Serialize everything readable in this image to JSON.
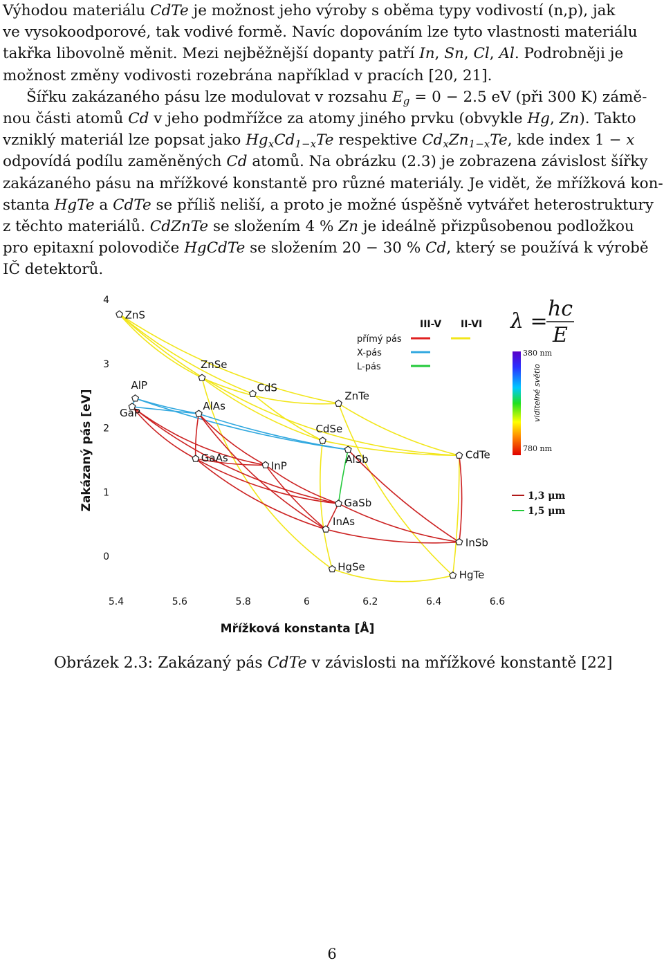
{
  "body_lines": [
    [
      "Výhodou materiálu ",
      {
        "m": "CdTe"
      },
      " je možnost jeho výroby s oběma typy vodivostí (n,p), jak"
    ],
    [
      "ve vysokoodporové, tak vodivé formě. Navíc dopováním lze tyto vlastnosti materiálu"
    ],
    [
      "takřka libovolně měnit. Mezi nejběžnější dopanty patří ",
      {
        "m": "In"
      },
      ", ",
      {
        "m": "Sn"
      },
      ", ",
      {
        "m": "Cl"
      },
      ", ",
      {
        "m": "Al"
      },
      ". Podrobněji je"
    ],
    [
      "možnost změny vodivosti rozebrána například v pracích [20, 21]."
    ],
    [
      "Šířku zakázaného pásu lze modulovat v rozsahu ",
      {
        "m": "E"
      },
      {
        "sub": "g"
      },
      " = 0 − 2.5 eV (při 300 K) zámě-"
    ],
    [
      "nou části atomů ",
      {
        "m": "Cd"
      },
      " v jeho podmřížce za atomy jiného prvku (obvykle ",
      {
        "m": "Hg"
      },
      ", ",
      {
        "m": "Zn"
      },
      "). Takto"
    ],
    [
      "vzniklý materiál lze popsat jako ",
      {
        "m": "Hg"
      },
      {
        "sub": "x"
      },
      {
        "m": "Cd"
      },
      {
        "sub": "1−x"
      },
      {
        "m": "Te"
      },
      " respektive ",
      {
        "m": "Cd"
      },
      {
        "sub": "x"
      },
      {
        "m": "Zn"
      },
      {
        "sub": "1−x"
      },
      {
        "m": "Te"
      },
      ", kde index 1 − ",
      {
        "m": "x"
      }
    ],
    [
      "odpovídá podílu zaměněných ",
      {
        "m": "Cd"
      },
      " atomů. Na obrázku (2.3) je zobrazena závislost šířky"
    ],
    [
      "zakázaného pásu na mřížkové konstantě pro různé materiály. Je vidět, že mřížková kon-"
    ],
    [
      "stanta ",
      {
        "m": "HgTe"
      },
      " a ",
      {
        "m": "CdTe"
      },
      " se příliš neliší, a proto je možné úspěšně vytvářet heterostruktury"
    ],
    [
      "z těchto materiálů. ",
      {
        "m": "CdZnTe"
      },
      " se složením 4 % ",
      {
        "m": "Zn"
      },
      " je ideálně přizpůsobenou podložkou"
    ],
    [
      "pro epitaxní polovodiče ",
      {
        "m": "HgCdTe"
      },
      " se složením 20 − 30 % ",
      {
        "m": "Cd"
      },
      ", který se používá k výrobě"
    ],
    [
      "IČ detektorů."
    ]
  ],
  "chart_data": {
    "type": "scatter",
    "xlabel": "Mřížková konstanta [Å]",
    "ylabel": "Zakázaný pás [eV]",
    "xlim": [
      5.4,
      6.6
    ],
    "ylim": [
      -0.3,
      4.0
    ],
    "x_ticks": [
      "5.4",
      "5.6",
      "5.8",
      "6",
      "6.2",
      "6.4",
      "6.6"
    ],
    "y_ticks": [
      "0",
      "1",
      "2",
      "3",
      "4"
    ],
    "points": [
      {
        "name": "ZnS",
        "x": 5.41,
        "y": 3.77,
        "group": "II-VI"
      },
      {
        "name": "ZnSe",
        "x": 5.67,
        "y": 2.78,
        "group": "II-VI"
      },
      {
        "name": "CdS",
        "x": 5.83,
        "y": 2.53,
        "group": "II-VI"
      },
      {
        "name": "ZnTe",
        "x": 6.1,
        "y": 2.38,
        "group": "II-VI"
      },
      {
        "name": "CdTe",
        "x": 6.48,
        "y": 1.57,
        "group": "II-VI"
      },
      {
        "name": "HgSe",
        "x": 6.08,
        "y": -0.2,
        "group": "II-VI"
      },
      {
        "name": "HgTe",
        "x": 6.46,
        "y": -0.3,
        "group": "II-VI"
      },
      {
        "name": "AlP",
        "x": 5.46,
        "y": 2.46,
        "group": "III-V"
      },
      {
        "name": "GaP",
        "x": 5.45,
        "y": 2.33,
        "group": "III-V"
      },
      {
        "name": "AlAs",
        "x": 5.66,
        "y": 2.22,
        "group": "III-V"
      },
      {
        "name": "CdSe",
        "x": 6.05,
        "y": 1.8,
        "group": "II-VI"
      },
      {
        "name": "AlSb",
        "x": 6.13,
        "y": 1.66,
        "group": "III-V"
      },
      {
        "name": "GaAs",
        "x": 5.65,
        "y": 1.52,
        "group": "III-V"
      },
      {
        "name": "InP",
        "x": 5.87,
        "y": 1.42,
        "group": "III-V"
      },
      {
        "name": "GaSb",
        "x": 6.1,
        "y": 0.82,
        "group": "III-V"
      },
      {
        "name": "InAs",
        "x": 6.06,
        "y": 0.42,
        "group": "III-V"
      },
      {
        "name": "InSb",
        "x": 6.48,
        "y": 0.22,
        "group": "III-V"
      }
    ],
    "curves": [
      {
        "from": "ZnS",
        "to": "ZnSe",
        "color": "#f2e61a",
        "bow": 0.1
      },
      {
        "from": "ZnS",
        "to": "CdS",
        "color": "#f2e61a",
        "bow": 0.08
      },
      {
        "from": "ZnS",
        "to": "ZnTe",
        "color": "#f2e61a",
        "bow": 0.1
      },
      {
        "from": "ZnS",
        "to": "CdTe",
        "color": "#f2e61a",
        "bow": 0.18
      },
      {
        "from": "ZnSe",
        "to": "CdSe",
        "color": "#f2e61a",
        "bow": 0.08
      },
      {
        "from": "ZnSe",
        "to": "ZnTe",
        "color": "#f2e61a",
        "bow": 0.12
      },
      {
        "from": "ZnSe",
        "to": "HgSe",
        "color": "#f2e61a",
        "bow": 0.18
      },
      {
        "from": "CdS",
        "to": "CdSe",
        "color": "#f2e61a",
        "bow": 0.06
      },
      {
        "from": "ZnTe",
        "to": "CdTe",
        "color": "#f2e61a",
        "bow": 0.08
      },
      {
        "from": "ZnTe",
        "to": "HgTe",
        "color": "#f2e61a",
        "bow": 0.12
      },
      {
        "from": "CdSe",
        "to": "CdTe",
        "color": "#f2e61a",
        "bow": 0.05
      },
      {
        "from": "CdSe",
        "to": "HgSe",
        "color": "#f2e61a",
        "bow": 0.1
      },
      {
        "from": "CdTe",
        "to": "HgTe",
        "color": "#f2e61a",
        "bow": -0.03
      },
      {
        "from": "HgSe",
        "to": "HgTe",
        "color": "#f2e61a",
        "bow": 0.15
      },
      {
        "from": "AlP",
        "to": "AlAs",
        "color": "#31a8df",
        "bow": 0.03
      },
      {
        "from": "AlP",
        "to": "GaP",
        "color": "#31a8df",
        "bow": 0.0
      },
      {
        "from": "AlAs",
        "to": "AlSb",
        "color": "#31a8df",
        "bow": 0.04
      },
      {
        "from": "AlP",
        "to": "AlSb",
        "color": "#31a8df",
        "bow": 0.05
      },
      {
        "from": "GaP",
        "to": "AlAs",
        "color": "#31a8df",
        "bow": 0.0
      },
      {
        "from": "AlSb",
        "to": "GaSb",
        "color": "#22c93a",
        "bow": 0.02
      },
      {
        "from": "GaP",
        "to": "GaAs",
        "color": "#cc2222",
        "bow": 0.1
      },
      {
        "from": "GaP",
        "to": "InP",
        "color": "#cc2222",
        "bow": 0.12
      },
      {
        "from": "GaP",
        "to": "GaSb",
        "color": "#cc2222",
        "bow": 0.12
      },
      {
        "from": "AlAs",
        "to": "GaAs",
        "color": "#cc2222",
        "bow": 0.05
      },
      {
        "from": "AlAs",
        "to": "InAs",
        "color": "#cc2222",
        "bow": 0.1
      },
      {
        "from": "AlAs",
        "to": "InP",
        "color": "#cc2222",
        "bow": 0.08
      },
      {
        "from": "GaAs",
        "to": "InP",
        "color": "#cc2222",
        "bow": 0.05
      },
      {
        "from": "GaAs",
        "to": "InAs",
        "color": "#cc2222",
        "bow": 0.1
      },
      {
        "from": "GaAs",
        "to": "GaSb",
        "color": "#cc2222",
        "bow": 0.1
      },
      {
        "from": "InP",
        "to": "InAs",
        "color": "#cc2222",
        "bow": 0.06
      },
      {
        "from": "InP",
        "to": "GaSb",
        "color": "#cc2222",
        "bow": 0.08
      },
      {
        "from": "InAs",
        "to": "InSb",
        "color": "#cc2222",
        "bow": 0.08
      },
      {
        "from": "InAs",
        "to": "GaSb",
        "color": "#cc2222",
        "bow": 0.0
      },
      {
        "from": "GaSb",
        "to": "InSb",
        "color": "#cc2222",
        "bow": 0.08
      },
      {
        "from": "AlSb",
        "to": "InSb",
        "color": "#cc2222",
        "bow": 0.06
      },
      {
        "from": "CdTe",
        "to": "InSb",
        "color": "#cc2222",
        "bow": -0.06
      }
    ],
    "legend": {
      "headers": [
        "III-V",
        "II-VI"
      ],
      "rows": [
        {
          "label": "přímý pás",
          "iiiv": "#e02020",
          "iivi": "#f2e61a"
        },
        {
          "label": "X-pás",
          "iiiv": "#31a8df"
        },
        {
          "label": "L-pás",
          "iiiv": "#22c93a"
        }
      ]
    },
    "formula": {
      "lhs": "λ =",
      "num": "hc",
      "den": "E"
    },
    "spectrum": {
      "top_label": "380 nm",
      "bottom_label": "780 nm",
      "side_label": "viditelné světlo",
      "extra": [
        {
          "label": "1,3 μm",
          "color": "#b01818"
        },
        {
          "label": "1,5 μm",
          "color": "#22c93a"
        }
      ]
    }
  },
  "caption": "Obrázek 2.3: Zakázaný pás CdTe v závislosti na mřížkové konstantě [22]",
  "caption_parts": {
    "pre": "Obrázek 2.3: Zakázaný pás ",
    "m": "CdTe",
    "post": " v závislosti na mřížkové konstantě [22]"
  },
  "page_number": "6"
}
